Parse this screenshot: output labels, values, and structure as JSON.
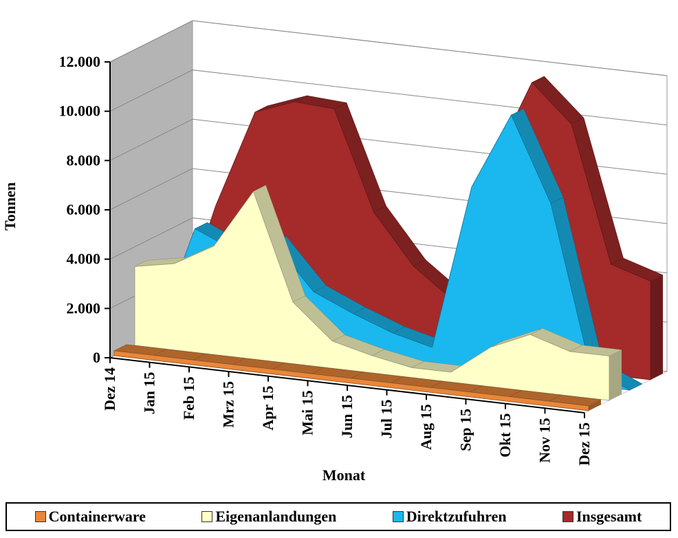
{
  "chart_data": {
    "type": "area3d",
    "y_axis_label": "Tonnen",
    "x_axis_label": "Monat",
    "categories": [
      "Dez 14",
      "Jan 15",
      "Feb 15",
      "Mrz 15",
      "Apr 15",
      "Mai 15",
      "Jun 15",
      "Jul 15",
      "Aug 15",
      "Sep 15",
      "Okt 15",
      "Nov 15",
      "Dez 15"
    ],
    "series": [
      {
        "name": "Containerware",
        "color": "#e8873a",
        "values": [
          200,
          200,
          200,
          200,
          200,
          200,
          200,
          200,
          200,
          200,
          200,
          200,
          200
        ]
      },
      {
        "name": "Eigenanlandungen",
        "color": "#ffffc8",
        "values": [
          3200,
          3500,
          4400,
          6800,
          2500,
          1100,
          700,
          400,
          400,
          1600,
          2300,
          1800,
          1800
        ]
      },
      {
        "name": "Direktzufuhren",
        "color": "#1ab8ee",
        "values": [
          0,
          4500,
          3800,
          4300,
          2500,
          1800,
          1200,
          800,
          7500,
          10600,
          7200,
          700,
          0
        ]
      },
      {
        "name": "Insgesamt",
        "color": "#a52a2a",
        "values": [
          0,
          5000,
          9000,
          9600,
          9500,
          5500,
          3500,
          2300,
          8000,
          11500,
          10000,
          4500,
          4000
        ]
      }
    ],
    "ylim": [
      0,
      12000
    ],
    "yticks": [
      0,
      {
        "value": 2000,
        "label": "2.000"
      },
      {
        "value": 4000,
        "label": "4.000"
      },
      {
        "value": 6000,
        "label": "6.000"
      },
      {
        "value": 8000,
        "label": "8.000"
      },
      {
        "value": 10000,
        "label": "10.000"
      },
      {
        "value": 12000,
        "label": "12.000"
      }
    ],
    "grid": true
  }
}
